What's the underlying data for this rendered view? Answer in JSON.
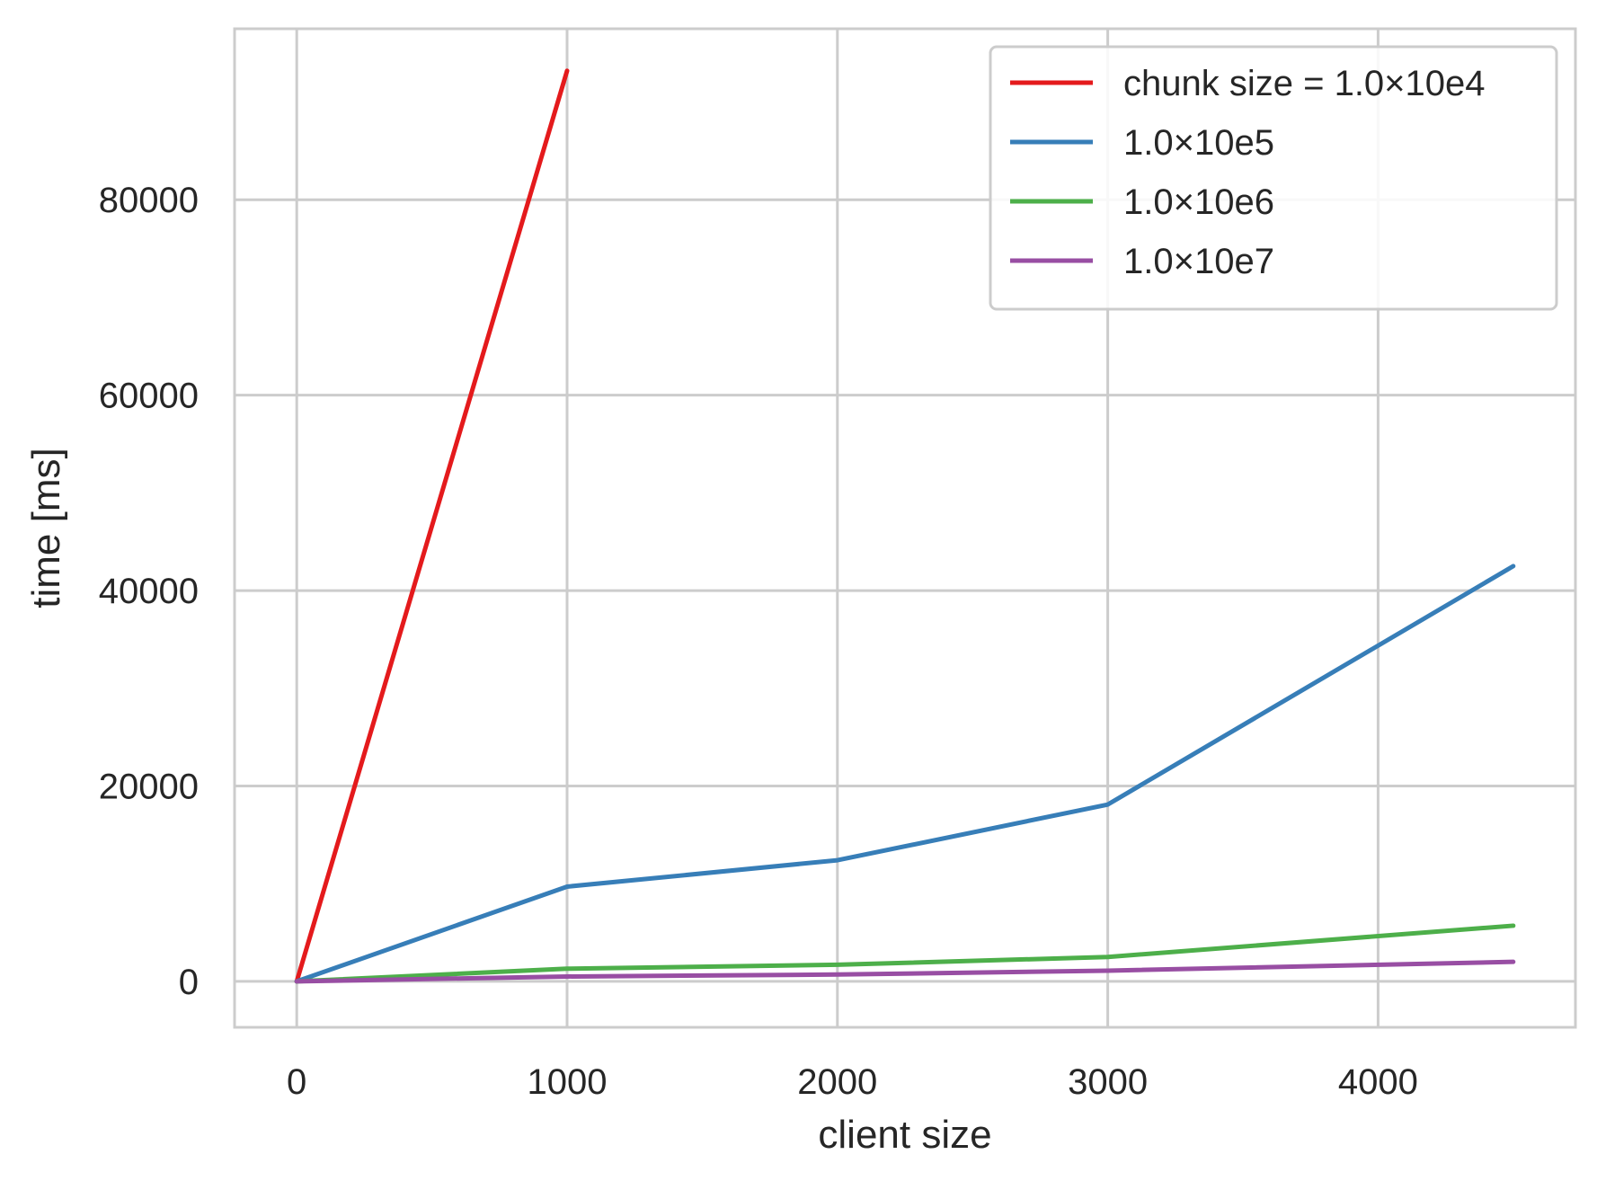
{
  "chart_data": {
    "type": "line",
    "title": "",
    "xlabel": "client size",
    "ylabel": "time [ms]",
    "xlim": [
      -230,
      4730
    ],
    "ylim": [
      -4700,
      97500
    ],
    "xticks": [
      0,
      1000,
      2000,
      3000,
      4000
    ],
    "yticks": [
      0,
      20000,
      40000,
      60000,
      80000
    ],
    "grid": true,
    "legend_position": "top-right",
    "series": [
      {
        "name": "chunk size = 1.0×10e4",
        "color": "#e41a1c",
        "x": [
          0,
          1000
        ],
        "y": [
          0,
          93200
        ]
      },
      {
        "name": "1.0×10e5",
        "color": "#377eb8",
        "x": [
          0,
          1000,
          2000,
          3000,
          4500
        ],
        "y": [
          0,
          9700,
          12400,
          18100,
          42500
        ]
      },
      {
        "name": "1.0×10e6",
        "color": "#4daf4a",
        "x": [
          0,
          1000,
          2000,
          3000,
          4500
        ],
        "y": [
          0,
          1300,
          1700,
          2500,
          5700
        ]
      },
      {
        "name": "1.0×10e7",
        "color": "#984ea3",
        "x": [
          0,
          1000,
          2000,
          3000,
          4500
        ],
        "y": [
          0,
          500,
          700,
          1100,
          2000
        ]
      }
    ]
  }
}
